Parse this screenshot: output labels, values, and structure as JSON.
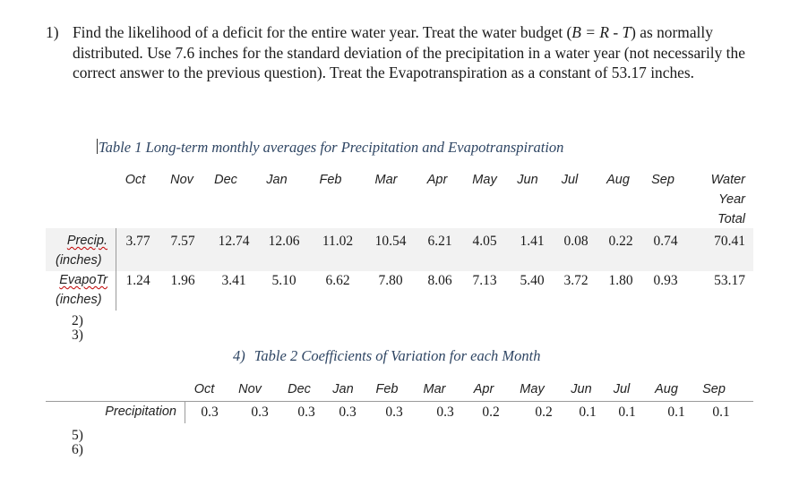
{
  "question1": {
    "number": "1)",
    "text_before_eq": "Find the likelihood of a deficit for the entire water year.  Treat the water budget (",
    "equation": "B = R - T",
    "text_after_eq": ") as normally distributed.  Use 7.6 inches for the standard deviation of the precipitation in a water year (not necessarily the correct answer to the previous question).  Treat the Evapotranspiration as a constant of 53.17 inches."
  },
  "table1": {
    "caption": "Table 1 Long-term monthly averages for Precipitation and Evapotranspiration",
    "months": [
      "Oct",
      "Nov",
      "Dec",
      "Jan",
      "Feb",
      "Mar",
      "Apr",
      "May",
      "Jun",
      "Jul",
      "Aug",
      "Sep"
    ],
    "total_header": [
      "Water",
      "Year",
      "Total"
    ],
    "rows": [
      {
        "label": "Precip.",
        "unit": "(inches)",
        "values": [
          "3.77",
          "7.57",
          "12.74",
          "12.06",
          "11.02",
          "10.54",
          "6.21",
          "4.05",
          "1.41",
          "0.08",
          "0.22",
          "0.74"
        ],
        "total": "70.41"
      },
      {
        "label": "EvapoTr",
        "unit": "(inches)",
        "values": [
          "1.24",
          "1.96",
          "3.41",
          "5.10",
          "6.62",
          "7.80",
          "8.06",
          "7.13",
          "5.40",
          "3.72",
          "1.80",
          "0.93"
        ],
        "total": "53.17"
      }
    ]
  },
  "list_a": [
    "2)",
    "3)"
  ],
  "table2": {
    "number": "4)",
    "caption": "Table 2 Coefficients of Variation for each Month",
    "months": [
      "Oct",
      "Nov",
      "Dec",
      "Jan",
      "Feb",
      "Mar",
      "Apr",
      "May",
      "Jun",
      "Jul",
      "Aug",
      "Sep"
    ],
    "row_label": "Precipitation",
    "values": [
      "0.3",
      "0.3",
      "0.3",
      "0.3",
      "0.3",
      "0.3",
      "0.2",
      "0.2",
      "0.1",
      "0.1",
      "0.1",
      "0.1"
    ]
  },
  "list_b": [
    "5)",
    "6)"
  ]
}
